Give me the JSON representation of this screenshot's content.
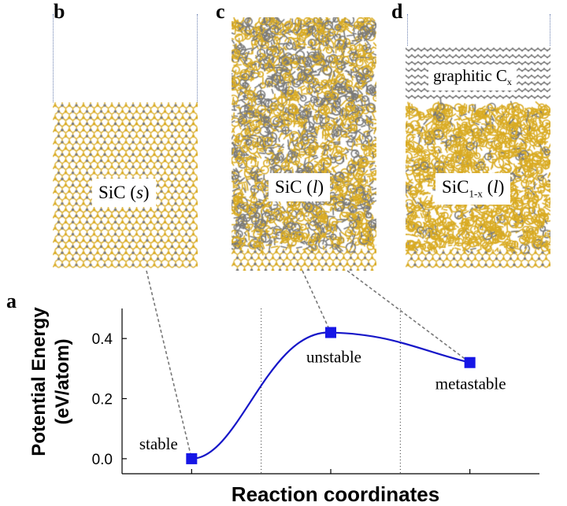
{
  "panels": {
    "a": "a",
    "b": "b",
    "c": "c",
    "d": "d"
  },
  "structures": {
    "b": {
      "label_main": "SiC (",
      "label_italic": "s",
      "label_end": ")"
    },
    "c": {
      "label_main": "SiC (",
      "label_italic": "l",
      "label_end": ")"
    },
    "d": {
      "label_main": "SiC",
      "label_sub": "1-x",
      "label_mid": " (",
      "label_italic": "l",
      "label_end": ")",
      "graphitic_main": "graphitic C",
      "graphitic_sub": "x"
    }
  },
  "colors": {
    "silicon": "#d9ab23",
    "carbon": "#7a7a7a",
    "curve": "#1616c8",
    "marker": "#1616e6"
  },
  "chart_data": {
    "type": "line",
    "xlabel": "Reaction coordinates",
    "ylabel_line1": "Potential Energy",
    "ylabel_line2": "(eV/atom)",
    "yticks": [
      "0.0",
      "0.2",
      "0.4"
    ],
    "ytick_values": [
      0.0,
      0.2,
      0.4
    ],
    "ylim": [
      -0.05,
      0.5
    ],
    "x": [
      1,
      2,
      3
    ],
    "xlim": [
      0.5,
      3.5
    ],
    "series": [
      {
        "values": [
          0.0,
          0.42,
          0.32
        ]
      }
    ],
    "point_labels": [
      "stable",
      "unstable",
      "metastable"
    ]
  }
}
